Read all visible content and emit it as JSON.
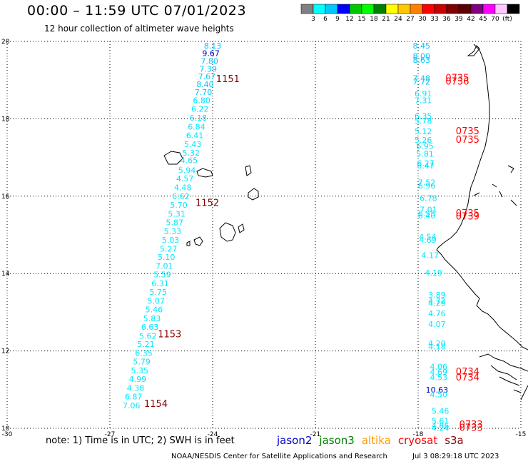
{
  "title": "00:00 – 11:59 UTC 07/01/2023",
  "subtitle": "12 hour collection of altimeter wave heights",
  "colorbar": {
    "colors": [
      "#808080",
      "#00ffff",
      "#00c8ff",
      "#0000ff",
      "#00c800",
      "#00ff00",
      "#008000",
      "#ffff00",
      "#ffc800",
      "#ff8000",
      "#ff0000",
      "#c80000",
      "#800000",
      "#5a0000",
      "#800080",
      "#ff00ff",
      "#ffc8ff",
      "#000000"
    ],
    "labels": [
      "3",
      "6",
      "9",
      "12",
      "15",
      "18",
      "21",
      "24",
      "27",
      "30",
      "33",
      "36",
      "39",
      "42",
      "45",
      "70",
      "(ft)"
    ]
  },
  "axes": {
    "x_ticks": [
      "-30",
      "-27",
      "-24",
      "-21",
      "-18",
      "-15"
    ],
    "y_ticks": [
      "20",
      "18",
      "16",
      "14",
      "12",
      "10"
    ],
    "lon_range": [
      -30,
      -15
    ],
    "lat_range": [
      10,
      20
    ]
  },
  "tracks": [
    {
      "name": "west",
      "color": "#00c8ff",
      "points": [
        {
          "lon": -24.0,
          "lat": 19.82,
          "value": "8.13",
          "color": "#00c8ff"
        },
        {
          "lon": -24.05,
          "lat": 19.62,
          "value": "9.67",
          "color": "#0000cc"
        },
        {
          "lon": -24.09,
          "lat": 19.42,
          "value": "7.80",
          "color": "#00c8ff"
        },
        {
          "lon": -24.13,
          "lat": 19.22,
          "value": "7.39",
          "color": "#00c8ff"
        },
        {
          "lon": -24.17,
          "lat": 19.02,
          "value": "7.67",
          "color": "#00c8ff"
        },
        {
          "lon": -24.22,
          "lat": 18.82,
          "value": "8.40",
          "color": "#00c8ff"
        },
        {
          "lon": -24.27,
          "lat": 18.62,
          "value": "7.70",
          "color": "#00c8ff"
        },
        {
          "lon": -24.32,
          "lat": 18.4,
          "value": "6.80",
          "color": "#00e6ff"
        },
        {
          "lon": -24.37,
          "lat": 18.18,
          "value": "6.22",
          "color": "#00e6ff"
        },
        {
          "lon": -24.42,
          "lat": 17.95,
          "value": "6.18",
          "color": "#00e6ff"
        },
        {
          "lon": -24.47,
          "lat": 17.72,
          "value": "6.84",
          "color": "#00e6ff"
        },
        {
          "lon": -24.52,
          "lat": 17.5,
          "value": "6.41",
          "color": "#00e6ff"
        },
        {
          "lon": -24.58,
          "lat": 17.27,
          "value": "5.43",
          "color": "#00e6ff"
        },
        {
          "lon": -24.63,
          "lat": 17.05,
          "value": "5.32",
          "color": "#00e6ff"
        },
        {
          "lon": -24.69,
          "lat": 16.85,
          "value": "4.65",
          "color": "#00e6ff"
        },
        {
          "lon": -24.75,
          "lat": 16.6,
          "value": "5.94",
          "color": "#00e6ff"
        },
        {
          "lon": -24.81,
          "lat": 16.38,
          "value": "4.57",
          "color": "#00e6ff"
        },
        {
          "lon": -24.87,
          "lat": 16.15,
          "value": "4.48",
          "color": "#00e6ff"
        },
        {
          "lon": -24.93,
          "lat": 15.92,
          "value": "6.62",
          "color": "#00e6ff"
        },
        {
          "lon": -24.99,
          "lat": 15.7,
          "value": "5.70",
          "color": "#00e6ff"
        },
        {
          "lon": -25.05,
          "lat": 15.47,
          "value": "5.31",
          "color": "#00e6ff"
        },
        {
          "lon": -25.11,
          "lat": 15.25,
          "value": "5.87",
          "color": "#00e6ff"
        },
        {
          "lon": -25.17,
          "lat": 15.02,
          "value": "5.33",
          "color": "#00e6ff"
        },
        {
          "lon": -25.23,
          "lat": 14.8,
          "value": "5.03",
          "color": "#00e6ff"
        },
        {
          "lon": -25.29,
          "lat": 14.57,
          "value": "5.27",
          "color": "#00e6ff"
        },
        {
          "lon": -25.35,
          "lat": 14.35,
          "value": "5.10",
          "color": "#00e6ff"
        },
        {
          "lon": -25.41,
          "lat": 14.12,
          "value": "7.01",
          "color": "#00e6ff"
        },
        {
          "lon": -25.47,
          "lat": 13.9,
          "value": "5.59",
          "color": "#00e6ff"
        },
        {
          "lon": -25.53,
          "lat": 13.67,
          "value": "6.31",
          "color": "#00e6ff"
        },
        {
          "lon": -25.59,
          "lat": 13.45,
          "value": "5.75",
          "color": "#00e6ff"
        },
        {
          "lon": -25.65,
          "lat": 13.22,
          "value": "5.07",
          "color": "#00e6ff"
        },
        {
          "lon": -25.71,
          "lat": 13.0,
          "value": "5.46",
          "color": "#00e6ff"
        },
        {
          "lon": -25.77,
          "lat": 12.77,
          "value": "5.83",
          "color": "#00e6ff"
        },
        {
          "lon": -25.83,
          "lat": 12.55,
          "value": "6.63",
          "color": "#00e6ff"
        },
        {
          "lon": -25.89,
          "lat": 12.32,
          "value": "5.62",
          "color": "#00e6ff"
        },
        {
          "lon": -25.95,
          "lat": 12.1,
          "value": "5.21",
          "color": "#00e6ff"
        },
        {
          "lon": -26.01,
          "lat": 11.87,
          "value": "6.35",
          "color": "#00e6ff"
        },
        {
          "lon": -26.07,
          "lat": 11.65,
          "value": "5.79",
          "color": "#00e6ff"
        },
        {
          "lon": -26.13,
          "lat": 11.42,
          "value": "5.35",
          "color": "#00e6ff"
        },
        {
          "lon": -26.19,
          "lat": 11.2,
          "value": "4.99",
          "color": "#00e6ff"
        },
        {
          "lon": -26.25,
          "lat": 10.97,
          "value": "4.38",
          "color": "#00e6ff"
        },
        {
          "lon": -26.31,
          "lat": 10.75,
          "value": "6.87",
          "color": "#00e6ff"
        },
        {
          "lon": -26.37,
          "lat": 10.52,
          "value": "7.06",
          "color": "#00e6ff"
        }
      ]
    },
    {
      "name": "east",
      "color": "#00c8ff",
      "points": [
        {
          "lon": -17.9,
          "lat": 19.82,
          "value": "8.45",
          "color": "#00c8ff"
        },
        {
          "lon": -17.9,
          "lat": 19.55,
          "value": "8.00",
          "color": "#00c8ff"
        },
        {
          "lon": -17.9,
          "lat": 19.45,
          "value": "8.63",
          "color": "#00c8ff"
        },
        {
          "lon": -17.9,
          "lat": 18.98,
          "value": "7.48",
          "color": "#00c8ff"
        },
        {
          "lon": -17.9,
          "lat": 18.88,
          "value": "7.72",
          "color": "#00c8ff"
        },
        {
          "lon": -17.85,
          "lat": 18.58,
          "value": "6.91",
          "color": "#00e6ff"
        },
        {
          "lon": -17.85,
          "lat": 18.4,
          "value": "7.31",
          "color": "#00e6ff"
        },
        {
          "lon": -17.85,
          "lat": 18.0,
          "value": "6.35",
          "color": "#00e6ff"
        },
        {
          "lon": -17.85,
          "lat": 17.88,
          "value": "5.78",
          "color": "#00e6ff"
        },
        {
          "lon": -17.85,
          "lat": 17.6,
          "value": "5.12",
          "color": "#00e6ff"
        },
        {
          "lon": -17.85,
          "lat": 17.38,
          "value": "5.26",
          "color": "#00e6ff"
        },
        {
          "lon": -17.8,
          "lat": 17.22,
          "value": "6.95",
          "color": "#00e6ff"
        },
        {
          "lon": -17.8,
          "lat": 17.02,
          "value": "5.81",
          "color": "#00e6ff"
        },
        {
          "lon": -17.78,
          "lat": 16.78,
          "value": "6.27",
          "color": "#00e6ff"
        },
        {
          "lon": -17.78,
          "lat": 16.72,
          "value": "6.47",
          "color": "#00e6ff"
        },
        {
          "lon": -17.75,
          "lat": 16.28,
          "value": "7.52",
          "color": "#00e6ff"
        },
        {
          "lon": -17.75,
          "lat": 16.2,
          "value": "6.96",
          "color": "#00e6ff"
        },
        {
          "lon": -17.7,
          "lat": 15.88,
          "value": "6.78",
          "color": "#00e6ff"
        },
        {
          "lon": -17.7,
          "lat": 15.58,
          "value": "7.01",
          "color": "#00e6ff"
        },
        {
          "lon": -17.75,
          "lat": 15.48,
          "value": "6.55",
          "color": "#00e6ff"
        },
        {
          "lon": -17.75,
          "lat": 15.42,
          "value": "6.40",
          "color": "#00e6ff"
        },
        {
          "lon": -17.72,
          "lat": 14.88,
          "value": "4.54",
          "color": "#00e6ff"
        },
        {
          "lon": -17.72,
          "lat": 14.8,
          "value": "4.69",
          "color": "#00e6ff"
        },
        {
          "lon": -17.65,
          "lat": 14.4,
          "value": "4.17",
          "color": "#00e6ff"
        },
        {
          "lon": -17.55,
          "lat": 13.95,
          "value": "4.19",
          "color": "#00e6ff"
        },
        {
          "lon": -17.45,
          "lat": 13.38,
          "value": "3.89",
          "color": "#00e6ff"
        },
        {
          "lon": -17.45,
          "lat": 13.22,
          "value": "4.72",
          "color": "#00e6ff"
        },
        {
          "lon": -17.45,
          "lat": 13.16,
          "value": "4.29",
          "color": "#00e6ff"
        },
        {
          "lon": -17.45,
          "lat": 12.9,
          "value": "4.76",
          "color": "#00e6ff"
        },
        {
          "lon": -17.45,
          "lat": 12.62,
          "value": "4.07",
          "color": "#00e6ff"
        },
        {
          "lon": -17.45,
          "lat": 12.12,
          "value": "4.20",
          "color": "#00e6ff"
        },
        {
          "lon": -17.45,
          "lat": 12.04,
          "value": "4.18",
          "color": "#00e6ff"
        },
        {
          "lon": -17.4,
          "lat": 11.52,
          "value": "4.06",
          "color": "#00e6ff"
        },
        {
          "lon": -17.4,
          "lat": 11.38,
          "value": "4.69",
          "color": "#00e6ff"
        },
        {
          "lon": -17.4,
          "lat": 11.25,
          "value": "4.53",
          "color": "#00e6ff"
        },
        {
          "lon": -17.45,
          "lat": 10.92,
          "value": "10.63",
          "color": "#0000cc"
        },
        {
          "lon": -17.4,
          "lat": 10.8,
          "value": "4.50",
          "color": "#00e6ff"
        },
        {
          "lon": -17.35,
          "lat": 10.38,
          "value": "5.46",
          "color": "#00e6ff"
        },
        {
          "lon": -17.35,
          "lat": 10.12,
          "value": "5.61",
          "color": "#00e6ff"
        },
        {
          "lon": -17.35,
          "lat": 10.0,
          "value": "4.86",
          "color": "#00e6ff"
        },
        {
          "lon": -17.35,
          "lat": 9.94,
          "value": "4.24",
          "color": "#00e6ff"
        }
      ]
    }
  ],
  "time_labels": [
    {
      "lon": -23.9,
      "lat": 18.95,
      "text": "1151",
      "color": "#8b0000"
    },
    {
      "lon": -24.5,
      "lat": 15.75,
      "text": "1152",
      "color": "#8b0000"
    },
    {
      "lon": -25.6,
      "lat": 12.35,
      "text": "1153",
      "color": "#8b0000"
    },
    {
      "lon": -26.0,
      "lat": 10.55,
      "text": "1154",
      "color": "#8b0000"
    },
    {
      "lon": -17.2,
      "lat": 18.98,
      "text": "0735",
      "color": "#ff0000"
    },
    {
      "lon": -17.2,
      "lat": 18.88,
      "text": "0736",
      "color": "#ff0000"
    },
    {
      "lon": -16.9,
      "lat": 17.6,
      "text": "0735",
      "color": "#ff0000"
    },
    {
      "lon": -16.9,
      "lat": 17.38,
      "text": "0735",
      "color": "#ff0000"
    },
    {
      "lon": -16.9,
      "lat": 15.48,
      "text": "0735",
      "color": "#ff0000"
    },
    {
      "lon": -16.9,
      "lat": 15.4,
      "text": "0739",
      "color": "#ff0000"
    },
    {
      "lon": -16.9,
      "lat": 11.38,
      "text": "0734",
      "color": "#ff0000"
    },
    {
      "lon": -16.9,
      "lat": 11.24,
      "text": "0734",
      "color": "#ff0000"
    },
    {
      "lon": -16.8,
      "lat": 10.02,
      "text": "0733",
      "color": "#ff0000"
    },
    {
      "lon": -16.8,
      "lat": 9.94,
      "text": "0733",
      "color": "#ff0000"
    }
  ],
  "footnote": "note: 1) Time is in UTC; 2) SWH is in feet",
  "legend": [
    {
      "label": "jason2",
      "color": "#0000cc"
    },
    {
      "label": "jason3",
      "color": "#008000"
    },
    {
      "label": "altika",
      "color": "#ff9900"
    },
    {
      "label": "cryosat",
      "color": "#ff0000"
    },
    {
      "label": "s3a",
      "color": "#8b0000"
    }
  ],
  "credit": "NOAA/NESDIS Center for Satellite Applications and Research",
  "stamp": "Jul 3 08:29:18 UTC 2023"
}
